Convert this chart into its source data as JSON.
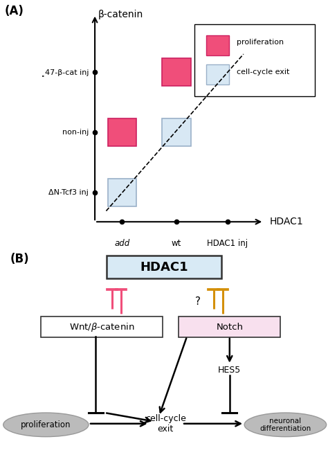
{
  "panel_A_label": "(A)",
  "panel_B_label": "(B)",
  "background_color": "#ffffff",
  "A": {
    "x_label": "HDAC1",
    "y_label": "β-catenin",
    "x_ticks": [
      "add",
      "wt",
      "HDAC1 inj"
    ],
    "y_ticks": [
      "ΔN-Tcf3 inj",
      "non-inj",
      "͇47-β-cat inj"
    ],
    "pink_color": "#F04E7A",
    "blue_color": "#D8E8F4",
    "blue_edge": "#9ab0c8",
    "pink_edge": "#cc2060",
    "legend_pink_label": "proliferation",
    "legend_blue_label": "cell-cycle exit"
  },
  "B": {
    "hdac1_box_color": "#D8EAF5",
    "wnt_box_color": "#ffffff",
    "notch_box_color": "#F8E0EE",
    "inhibit_color_pink": "#F04E7A",
    "inhibit_color_orange": "#D4900A",
    "ellipse_color": "#BBBBBB",
    "ellipse_edge": "#999999"
  }
}
